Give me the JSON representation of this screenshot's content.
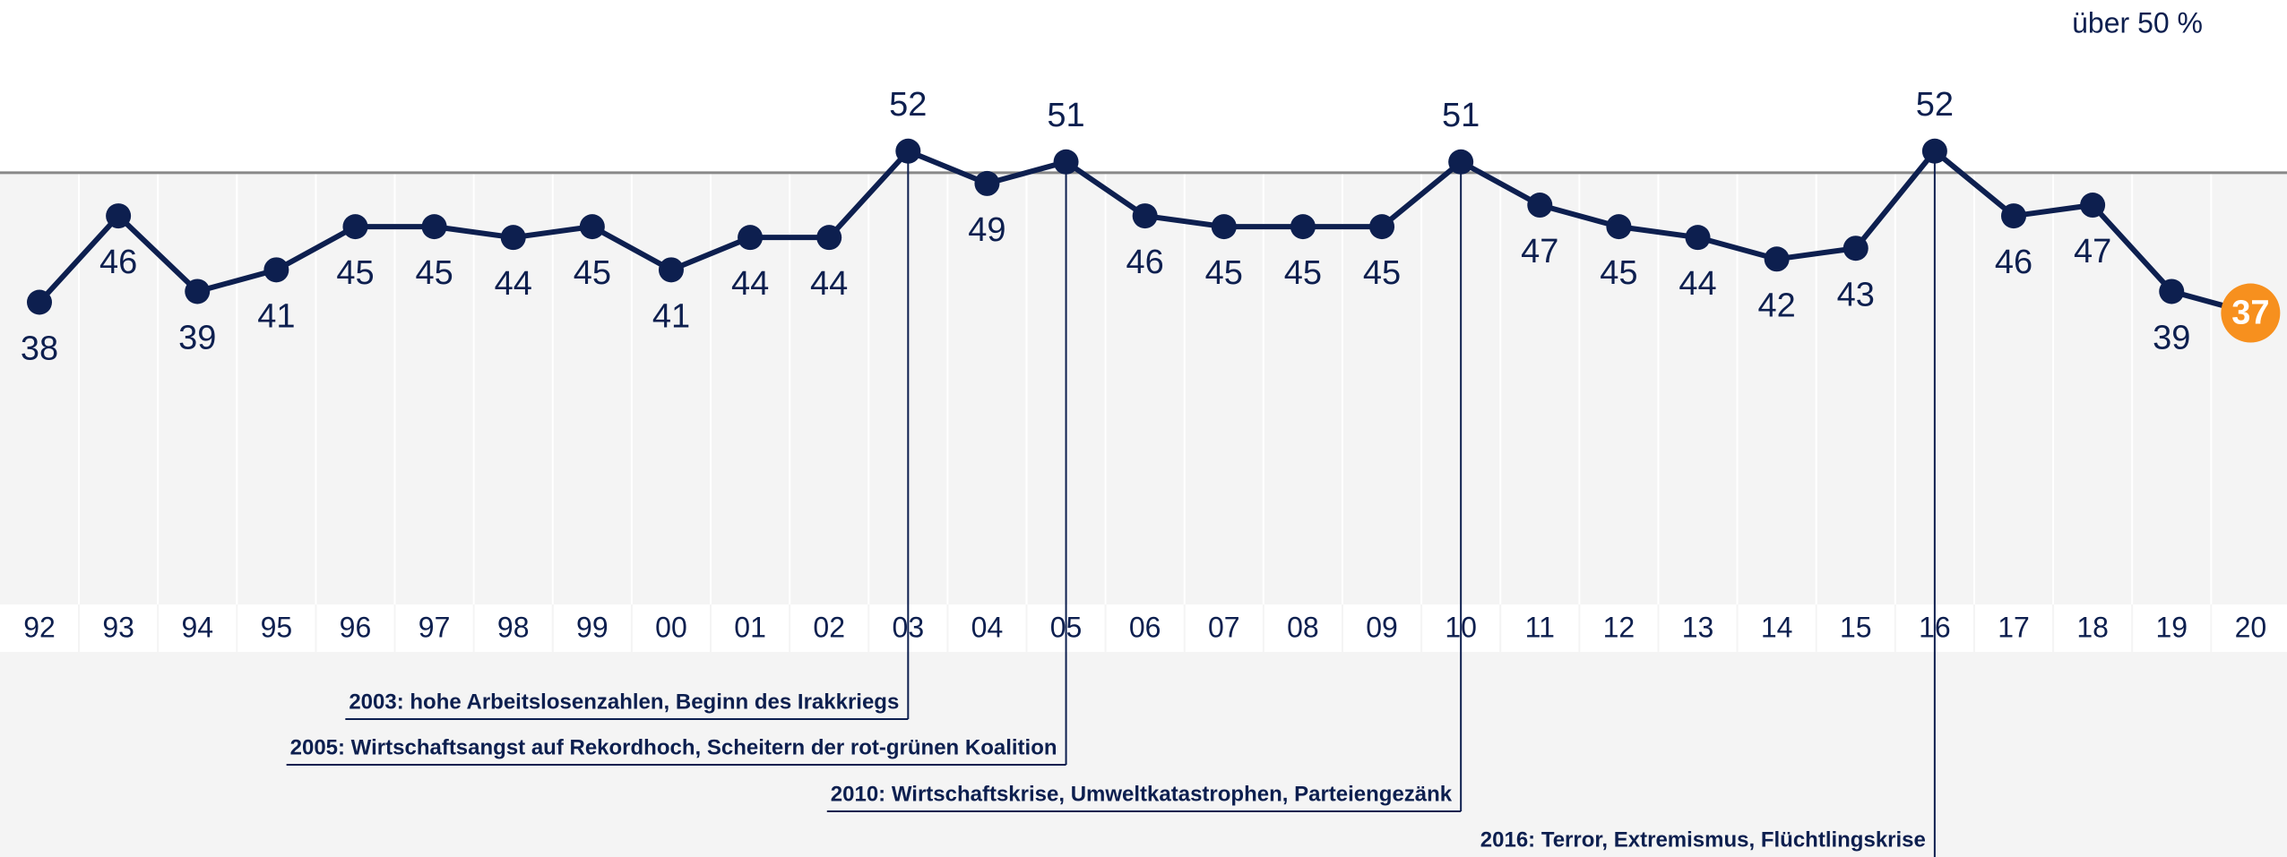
{
  "chart_data": {
    "type": "line",
    "categories": [
      "92",
      "93",
      "94",
      "95",
      "96",
      "97",
      "98",
      "99",
      "00",
      "01",
      "02",
      "03",
      "04",
      "05",
      "06",
      "07",
      "08",
      "09",
      "10",
      "11",
      "12",
      "13",
      "14",
      "15",
      "16",
      "17",
      "18",
      "19",
      "20"
    ],
    "values": [
      38,
      46,
      39,
      41,
      45,
      45,
      44,
      45,
      41,
      44,
      44,
      52,
      49,
      51,
      46,
      45,
      45,
      45,
      51,
      47,
      45,
      44,
      42,
      43,
      52,
      46,
      47,
      39,
      37
    ],
    "color": "#0d1f4f",
    "highlight_color": "#f7901e",
    "ylim": [
      10,
      66
    ],
    "reference_line": 50,
    "reference_label": "über 50 %",
    "annotations": [
      {
        "x": "03",
        "text": "2003: hohe Arbeitslosenzahlen, Beginn des Irakkriegs"
      },
      {
        "x": "05",
        "text": "2005: Wirtschaftsangst auf Rekordhoch, Scheitern der rot-grünen Koalition"
      },
      {
        "x": "10",
        "text": "2010: Wirtschaftskrise, Umweltkatastrophen, Parteiengezänk"
      },
      {
        "x": "16",
        "text": "2016: Terror, Extremismus, Flüchtlingskrise"
      }
    ]
  }
}
